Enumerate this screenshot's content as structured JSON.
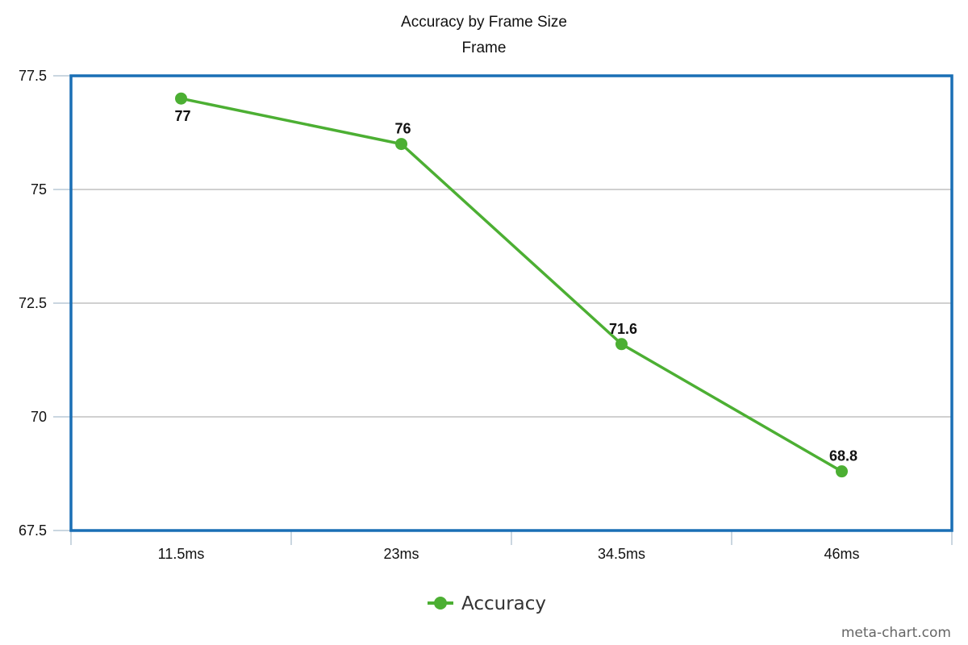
{
  "chart_data": {
    "type": "line",
    "title": "Accuracy by Frame Size",
    "subtitle": "Frame",
    "categories": [
      "11.5ms",
      "23ms",
      "34.5ms",
      "46ms"
    ],
    "series": [
      {
        "name": "Accuracy",
        "values": [
          77,
          76,
          71.6,
          68.8
        ],
        "data_labels": [
          "77",
          "76",
          "71.6",
          "68.8"
        ],
        "color": "#4caf33"
      }
    ],
    "ylim": [
      67.5,
      77.5
    ],
    "yticks": [
      67.5,
      70,
      72.5,
      75,
      77.5
    ],
    "ytick_labels": [
      "67.5",
      "70",
      "72.5",
      "75",
      "77.5"
    ],
    "grid": true,
    "legend_position": "bottom-center",
    "frame_color": "#1a6fb5",
    "grid_color": "#c0c0c0",
    "axis_color": "#b9c8d6"
  },
  "credit": "meta-chart.com"
}
